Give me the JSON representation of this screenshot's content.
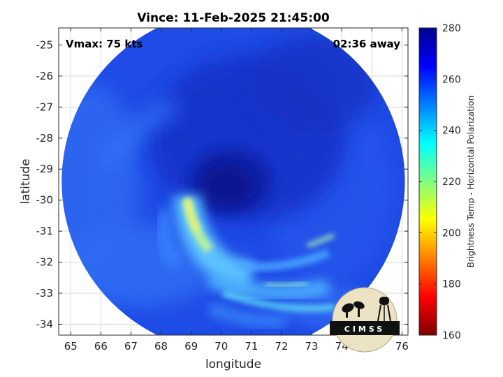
{
  "chart_data": {
    "type": "heatmap",
    "title": "Vince: 11-Feb-2025 21:45:00",
    "xlabel": "longitude",
    "ylabel": "latitude",
    "xlim": [
      64.6,
      76.2
    ],
    "ylim": [
      -34.35,
      -24.45
    ],
    "xticks": [
      65,
      66,
      67,
      68,
      69,
      70,
      71,
      72,
      73,
      74,
      75,
      76
    ],
    "yticks": [
      -25,
      -26,
      -27,
      -28,
      -29,
      -30,
      -31,
      -32,
      -33,
      -34
    ],
    "grid": true,
    "annotations": {
      "vmax": "Vmax: 75 kts",
      "away": "02:36 away"
    },
    "swath": {
      "center_lon": 70.4,
      "center_lat": -29.4,
      "radius_deg": 5.7
    },
    "eye": {
      "lon": 70.7,
      "lat": -29.6
    },
    "colorbar": {
      "label": "Brightness Temp - Horizontal Polarization",
      "min": 160,
      "max": 280,
      "ticks": [
        160,
        180,
        200,
        220,
        240,
        260,
        280
      ],
      "colormap": [
        "#7f0000",
        "#ff0000",
        "#ff8000",
        "#ffff00",
        "#80ff80",
        "#00ffff",
        "#0080ff",
        "#0000ff",
        "#00008f"
      ]
    }
  },
  "logo": {
    "text": "CIMSS"
  }
}
